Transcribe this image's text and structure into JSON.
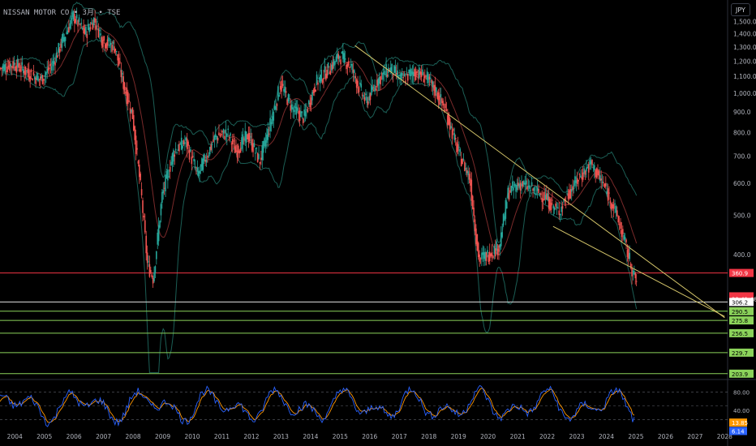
{
  "header": {
    "symbol_line": "NISSAN MOTOR CO • 3月 • TSE",
    "currency_button": "JPY"
  },
  "colors": {
    "up": "#26a69a",
    "down": "#ef5350",
    "band": "#1b5e55",
    "basis": "#7a2a2a",
    "trendline": "#d4c56a",
    "red_level": "#f23645",
    "green_level": "#8bd35a",
    "rsi_k": "#2962ff",
    "rsi_d": "#ff9800"
  },
  "chart_data": {
    "type": "candlestick",
    "x_axis": {
      "start": "2004-01",
      "end": "2028-06",
      "tick_labels": [
        "2004",
        "2005",
        "2006",
        "2007",
        "2008",
        "2009",
        "2010",
        "2011",
        "2012",
        "2013",
        "2014",
        "2015",
        "2016",
        "2017",
        "2018",
        "2019",
        "2020",
        "2021",
        "2022",
        "2023",
        "2024",
        "2025",
        "2026",
        "2027",
        "2028"
      ]
    },
    "y_axis": {
      "scale": "log",
      "range": [
        200,
        1650
      ],
      "tick_labels": [
        "1,500.0",
        "1,400.0",
        "1,300.0",
        "1,200.0",
        "1,100.0",
        "1,000.0",
        "900.0",
        "800.0",
        "700.0",
        "600.0",
        "500.0",
        "400.0"
      ],
      "tick_values": [
        1500,
        1400,
        1300,
        1200,
        1100,
        1000,
        900,
        800,
        700,
        600,
        500,
        400
      ]
    },
    "price_path": [
      [
        2004.0,
        1150
      ],
      [
        2004.5,
        1180
      ],
      [
        2005.0,
        1120
      ],
      [
        2005.4,
        1080
      ],
      [
        2005.8,
        1180
      ],
      [
        2006.2,
        1380
      ],
      [
        2006.5,
        1550
      ],
      [
        2006.9,
        1400
      ],
      [
        2007.2,
        1520
      ],
      [
        2007.5,
        1350
      ],
      [
        2007.9,
        1300
      ],
      [
        2008.2,
        1050
      ],
      [
        2008.5,
        880
      ],
      [
        2008.8,
        560
      ],
      [
        2009.0,
        380
      ],
      [
        2009.2,
        350
      ],
      [
        2009.5,
        560
      ],
      [
        2009.9,
        720
      ],
      [
        2010.3,
        760
      ],
      [
        2010.7,
        630
      ],
      [
        2011.0,
        700
      ],
      [
        2011.3,
        780
      ],
      [
        2011.7,
        800
      ],
      [
        2012.0,
        720
      ],
      [
        2012.4,
        790
      ],
      [
        2012.8,
        680
      ],
      [
        2013.2,
        860
      ],
      [
        2013.5,
        1050
      ],
      [
        2013.9,
        920
      ],
      [
        2014.3,
        870
      ],
      [
        2014.7,
        1060
      ],
      [
        2015.2,
        1160
      ],
      [
        2015.5,
        1240
      ],
      [
        2015.9,
        1160
      ],
      [
        2016.1,
        1060
      ],
      [
        2016.4,
        950
      ],
      [
        2016.8,
        1080
      ],
      [
        2017.2,
        1150
      ],
      [
        2017.6,
        1080
      ],
      [
        2018.0,
        1130
      ],
      [
        2018.4,
        1100
      ],
      [
        2018.8,
        1000
      ],
      [
        2019.1,
        900
      ],
      [
        2019.5,
        720
      ],
      [
        2019.9,
        620
      ],
      [
        2020.2,
        390
      ],
      [
        2020.5,
        400
      ],
      [
        2020.9,
        420
      ],
      [
        2021.2,
        570
      ],
      [
        2021.6,
        600
      ],
      [
        2022.0,
        580
      ],
      [
        2022.4,
        560
      ],
      [
        2022.9,
        510
      ],
      [
        2023.2,
        560
      ],
      [
        2023.6,
        620
      ],
      [
        2024.0,
        670
      ],
      [
        2024.4,
        600
      ],
      [
        2024.8,
        520
      ],
      [
        2025.1,
        440
      ],
      [
        2025.5,
        345
      ]
    ],
    "trendline_upper": {
      "from": [
        2016.0,
        1310
      ],
      "to": [
        2028.5,
        280
      ]
    },
    "trendline_lower": {
      "from": [
        2022.7,
        470
      ],
      "to": [
        2028.5,
        282
      ]
    },
    "horizontal_levels": [
      {
        "label": "360.9",
        "value": 360.9,
        "color": "red"
      },
      {
        "label": "316.1",
        "value": 316.1,
        "color": "current"
      },
      {
        "label": "22:41:48",
        "value": 312.0,
        "color": "timer"
      },
      {
        "label": "306.2",
        "value": 306.2,
        "color": "white"
      },
      {
        "label": "290.5",
        "value": 290.5,
        "color": "green"
      },
      {
        "label": "275.8",
        "value": 275.8,
        "color": "green"
      },
      {
        "label": "256.5",
        "value": 256.5,
        "color": "green"
      },
      {
        "label": "229.7",
        "value": 229.7,
        "color": "green"
      },
      {
        "label": "203.9",
        "value": 203.9,
        "color": "green"
      }
    ],
    "oscillator": {
      "range": [
        0,
        100
      ],
      "tick_labels": [
        "80.00",
        "40.00"
      ],
      "tick_values": [
        80,
        40
      ],
      "dashed_levels": [
        80,
        50,
        20
      ],
      "k_label": "6.14",
      "k_value": 6.14,
      "d_label": "13.85",
      "d_value": 13.85
    }
  }
}
